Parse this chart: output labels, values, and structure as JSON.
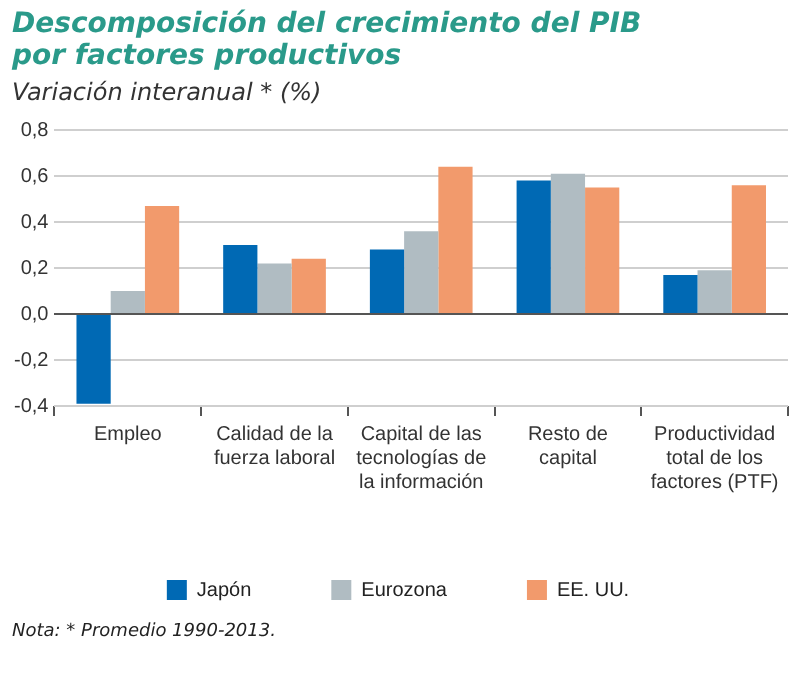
{
  "chart_data": {
    "type": "bar",
    "title": "Descomposición del crecimiento del PIB por factores productivos",
    "subtitle": "Variación interanual * (%)",
    "categories": [
      "Empleo",
      "Calidad de la fuerza laboral",
      "Capital de las tecnologías de la información",
      "Resto de capital",
      "Productividad total de los factores (PTF)"
    ],
    "series": [
      {
        "name": "Japón",
        "color": "#0069b4",
        "values": [
          -0.39,
          0.3,
          0.28,
          0.58,
          0.17
        ]
      },
      {
        "name": "Eurozona",
        "color": "#b0bcc2",
        "values": [
          0.1,
          0.22,
          0.36,
          0.61,
          0.19
        ]
      },
      {
        "name": "EE. UU.",
        "color": "#f29a6c",
        "values": [
          0.47,
          0.24,
          0.64,
          0.55,
          0.56
        ]
      }
    ],
    "ylim": [
      -0.4,
      0.8
    ],
    "yticks": [
      {
        "value": -0.4,
        "label": "-0,4"
      },
      {
        "value": -0.2,
        "label": "-0,2"
      },
      {
        "value": 0,
        "label": "0,0"
      },
      {
        "value": 0.2,
        "label": "0,2"
      },
      {
        "value": 0.4,
        "label": "0,4"
      },
      {
        "value": 0.6,
        "label": "0,6"
      },
      {
        "value": 0.8,
        "label": "0,8"
      }
    ],
    "grid": "y",
    "legend": "bottom",
    "annotations": [
      "Nota: * Promedio 1990-2013."
    ]
  }
}
